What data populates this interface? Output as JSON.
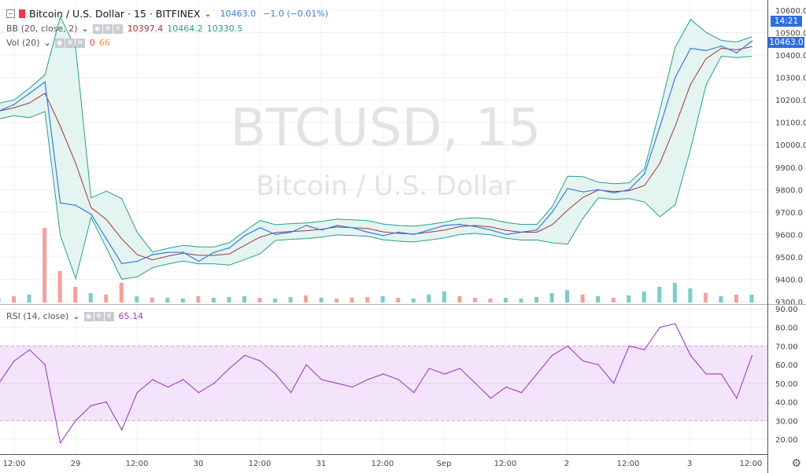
{
  "header": {
    "symbol_title": "Bitcoin / U.S. Dollar · 15 · BITFINEX",
    "last": "10463.0",
    "change": "−1.0 (−0.01%)"
  },
  "indicators": {
    "bb": {
      "label": "BB (20, close, 2)",
      "basis": "10397.4",
      "upper": "10464.2",
      "lower": "10330.5"
    },
    "vol": {
      "label": "Vol (20)",
      "v1": "0",
      "v2": "66"
    },
    "rsi": {
      "label": "RSI (14, close)",
      "value": "65.14"
    }
  },
  "watermark": {
    "symbol": "BTCUSD, 15",
    "name": "Bitcoin / U.S. Dollar"
  },
  "price_axis": {
    "current_price": "10463.0",
    "countdown": "14:21"
  },
  "colors": {
    "price": "#3b7be0",
    "bb_basis": "#a0363b",
    "bb_band": "#2a9d8f",
    "bb_fill": "#e4f4f1",
    "rsi": "#a13cc7",
    "rsi_band": "#f3e4fb",
    "vol_up": "#7ccdc3",
    "vol_down": "#f5a09a"
  },
  "chart_data": [
    {
      "type": "line",
      "pane": "price",
      "ylim": [
        9300,
        10600
      ],
      "yticks": [
        "10600.0",
        "10500.0",
        "10400.0",
        "10300.0",
        "10200.0",
        "10100.0",
        "10000.0",
        "9900.0",
        "9800.0",
        "9700.0",
        "9600.0",
        "9500.0",
        "9400.0",
        "9300.0"
      ],
      "xticks": [
        "12:00",
        "29",
        "12:00",
        "30",
        "12:00",
        "31",
        "12:00",
        "Sep",
        "12:00",
        "2",
        "12:00",
        "3",
        "12:00"
      ],
      "series": [
        {
          "values": [
            [
              "08-28 09:00",
              10150
            ],
            [
              "08-28 12:00",
              10180
            ],
            [
              "08-28 15:00",
              10230
            ],
            [
              "08-28 18:00",
              10280
            ],
            [
              "08-28 21:00",
              9740
            ],
            [
              "08-29 00:00",
              9730
            ],
            [
              "08-29 03:00",
              9690
            ],
            [
              "08-29 06:00",
              9580
            ],
            [
              "08-29 09:00",
              9470
            ],
            [
              "08-29 12:00",
              9480
            ],
            [
              "08-29 15:00",
              9510
            ],
            [
              "08-29 18:00",
              9520
            ],
            [
              "08-29 21:00",
              9520
            ],
            [
              "08-30 00:00",
              9480
            ],
            [
              "08-30 03:00",
              9520
            ],
            [
              "08-30 06:00",
              9540
            ],
            [
              "08-30 09:00",
              9595
            ],
            [
              "08-30 12:00",
              9630
            ],
            [
              "08-30 15:00",
              9600
            ],
            [
              "08-30 18:00",
              9610
            ],
            [
              "08-30 21:00",
              9640
            ],
            [
              "08-31 00:00",
              9620
            ],
            [
              "08-31 03:00",
              9640
            ],
            [
              "08-31 06:00",
              9630
            ],
            [
              "08-31 09:00",
              9610
            ],
            [
              "08-31 12:00",
              9595
            ],
            [
              "08-31 15:00",
              9610
            ],
            [
              "08-31 18:00",
              9600
            ],
            [
              "08-31 21:00",
              9620
            ],
            [
              "09-01 00:00",
              9640
            ],
            [
              "09-01 03:00",
              9645
            ],
            [
              "09-01 06:00",
              9635
            ],
            [
              "09-01 09:00",
              9620
            ],
            [
              "09-01 12:00",
              9600
            ],
            [
              "09-01 15:00",
              9610
            ],
            [
              "09-01 18:00",
              9620
            ],
            [
              "09-01 21:00",
              9700
            ],
            [
              "09-02 00:00",
              9805
            ],
            [
              "09-02 03:00",
              9790
            ],
            [
              "09-02 06:00",
              9800
            ],
            [
              "09-02 09:00",
              9785
            ],
            [
              "09-02 12:00",
              9800
            ],
            [
              "09-02 15:00",
              9870
            ],
            [
              "09-02 18:00",
              10080
            ],
            [
              "09-02 21:00",
              10300
            ],
            [
              "09-03 00:00",
              10430
            ],
            [
              "09-03 03:00",
              10420
            ],
            [
              "09-03 06:00",
              10440
            ],
            [
              "09-03 09:00",
              10410
            ],
            [
              "09-03 12:00",
              10463
            ]
          ]
        }
      ],
      "volume": [
        6,
        8,
        10,
        95,
        40,
        20,
        12,
        10,
        25,
        8,
        6,
        6,
        5,
        8,
        6,
        7,
        8,
        6,
        5,
        7,
        9,
        6,
        5,
        6,
        7,
        8,
        6,
        5,
        10,
        14,
        8,
        6,
        5,
        6,
        5,
        7,
        12,
        16,
        10,
        8,
        6,
        9,
        14,
        20,
        25,
        18,
        12,
        8,
        10,
        10
      ],
      "volume_dir": [
        "u",
        "d",
        "u",
        "d",
        "d",
        "d",
        "u",
        "d",
        "d",
        "u",
        "d",
        "u",
        "u",
        "d",
        "u",
        "u",
        "u",
        "d",
        "u",
        "u",
        "d",
        "u",
        "d",
        "d",
        "d",
        "u",
        "d",
        "u",
        "u",
        "u",
        "d",
        "d",
        "d",
        "u",
        "u",
        "u",
        "u",
        "u",
        "d",
        "u",
        "d",
        "u",
        "u",
        "u",
        "u",
        "u",
        "d",
        "u",
        "d",
        "u"
      ]
    },
    {
      "type": "line",
      "pane": "rsi",
      "ylim": [
        12,
        92
      ],
      "yticks": [
        "90.00",
        "80.00",
        "70.00",
        "60.00",
        "50.00",
        "40.00",
        "30.00",
        "20.00"
      ],
      "bands": [
        30,
        70
      ],
      "series": [
        {
          "values": [
            50,
            62,
            68,
            60,
            18,
            30,
            38,
            40,
            25,
            45,
            52,
            48,
            52,
            45,
            50,
            58,
            65,
            62,
            55,
            45,
            60,
            52,
            50,
            48,
            52,
            55,
            52,
            45,
            58,
            55,
            58,
            50,
            42,
            48,
            45,
            55,
            65,
            70,
            62,
            60,
            50,
            70,
            68,
            80,
            82,
            65,
            55,
            55,
            42,
            65
          ]
        }
      ]
    }
  ]
}
